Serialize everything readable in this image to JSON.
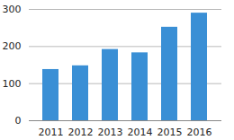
{
  "chart_data": {
    "type": "bar",
    "categories": [
      "2011",
      "2012",
      "2013",
      "2014",
      "2015",
      "2016"
    ],
    "values": [
      138,
      148,
      192,
      183,
      252,
      290
    ],
    "color": "#3a8fd5",
    "ylim": [
      0,
      300
    ],
    "yticks": [
      0,
      100,
      200,
      300
    ],
    "grid": true
  }
}
